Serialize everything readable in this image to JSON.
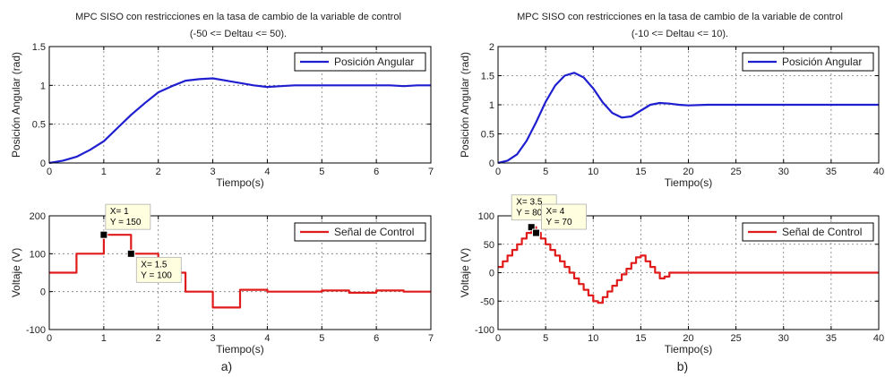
{
  "panel_labels": [
    "a)",
    "b)"
  ],
  "colors": {
    "position": "#1f1fd0",
    "control": "#e01b1b",
    "grid": "#7a7a7a",
    "datatip_bg": "#ffffe0"
  },
  "chart_data": [
    {
      "type": "line",
      "title_line1": "MPC SISO con restricciones en la tasa de cambio de la variable de control",
      "title_line2": "(-50 <= Deltau <= 50).",
      "xlabel": "Tiempo(s)",
      "ylabel": "Posición Angular (rad)",
      "xlim": [
        0,
        7
      ],
      "ylim": [
        0,
        1.5
      ],
      "xticks": [
        0,
        1,
        2,
        3,
        4,
        5,
        6,
        7
      ],
      "yticks": [
        0,
        0.5,
        1,
        1.5
      ],
      "legend": "Posición Angular",
      "legend_position": "top-right",
      "grid": true,
      "series": [
        {
          "name": "Posición Angular",
          "x": [
            0,
            0.25,
            0.5,
            0.75,
            1,
            1.25,
            1.5,
            1.75,
            2,
            2.25,
            2.5,
            2.75,
            3,
            3.25,
            3.5,
            3.75,
            4,
            4.25,
            4.5,
            4.75,
            5,
            5.25,
            5.5,
            5.75,
            6,
            6.25,
            6.5,
            6.75,
            7
          ],
          "y": [
            0,
            0.03,
            0.08,
            0.17,
            0.28,
            0.45,
            0.62,
            0.77,
            0.91,
            0.99,
            1.06,
            1.08,
            1.09,
            1.06,
            1.03,
            1.0,
            0.98,
            0.99,
            1.0,
            1.0,
            1.0,
            1.0,
            1.0,
            1.0,
            1.0,
            1.0,
            0.99,
            1.0,
            1.0
          ]
        }
      ]
    },
    {
      "type": "line",
      "xlabel": "Tiempo(s)",
      "ylabel": "Voltaje (V)",
      "xlim": [
        0,
        7
      ],
      "ylim": [
        -100,
        200
      ],
      "xticks": [
        0,
        1,
        2,
        3,
        4,
        5,
        6,
        7
      ],
      "yticks": [
        -100,
        0,
        100,
        200
      ],
      "legend": "Señal de Control",
      "legend_position": "top-right",
      "grid": true,
      "series": [
        {
          "name": "Señal de Control",
          "step": true,
          "x": [
            0,
            0.5,
            1,
            1.5,
            2,
            2.5,
            3,
            3.5,
            4,
            4.5,
            5,
            5.5,
            6,
            6.5,
            7
          ],
          "y": [
            50,
            100,
            150,
            100,
            50,
            0,
            -42,
            5,
            0,
            0,
            3,
            -3,
            3,
            0,
            0
          ]
        }
      ],
      "datatips": [
        {
          "x": 1,
          "y": 150,
          "line1": "X= 1",
          "line2": "Y = 150",
          "place": "above"
        },
        {
          "x": 1.5,
          "y": 100,
          "line1": "X= 1.5",
          "line2": "Y = 100",
          "place": "below"
        }
      ]
    },
    {
      "type": "line",
      "title_line1": "MPC SISO con restricciones en la tasa de cambio de la variable de control",
      "title_line2": "(-10 <= Deltau <= 10).",
      "xlabel": "Tiempo(s)",
      "ylabel": "Posición Angular (rad)",
      "xlim": [
        0,
        40
      ],
      "ylim": [
        0,
        2
      ],
      "xticks": [
        0,
        5,
        10,
        15,
        20,
        25,
        30,
        35,
        40
      ],
      "yticks": [
        0,
        0.5,
        1,
        1.5,
        2
      ],
      "legend": "Posición Angular",
      "legend_position": "top-right",
      "grid": true,
      "series": [
        {
          "name": "Posición Angular",
          "x": [
            0,
            1,
            2,
            3,
            4,
            5,
            6,
            7,
            8,
            9,
            10,
            11,
            12,
            13,
            14,
            15,
            16,
            17,
            18,
            19,
            20,
            22,
            25,
            30,
            35,
            40
          ],
          "y": [
            0,
            0.04,
            0.15,
            0.38,
            0.7,
            1.05,
            1.33,
            1.5,
            1.55,
            1.47,
            1.28,
            1.04,
            0.86,
            0.78,
            0.8,
            0.9,
            1.0,
            1.03,
            1.02,
            1.0,
            0.99,
            1.0,
            1.0,
            1.0,
            1.0,
            1.0
          ]
        }
      ]
    },
    {
      "type": "line",
      "xlabel": "Tiempo(s)",
      "ylabel": "Voltaje (V)",
      "xlim": [
        0,
        40
      ],
      "ylim": [
        -100,
        100
      ],
      "xticks": [
        0,
        5,
        10,
        15,
        20,
        25,
        30,
        35,
        40
      ],
      "yticks": [
        -100,
        -50,
        0,
        50,
        100
      ],
      "legend": "Señal de Control",
      "legend_position": "top-right",
      "grid": true,
      "series": [
        {
          "name": "Señal de Control",
          "step": true,
          "x": [
            0,
            0.5,
            1,
            1.5,
            2,
            2.5,
            3,
            3.5,
            4,
            4.5,
            5,
            5.5,
            6,
            6.5,
            7,
            7.5,
            8,
            8.5,
            9,
            9.5,
            10,
            10.5,
            11,
            11.5,
            12,
            12.5,
            13,
            13.5,
            14,
            14.5,
            15,
            15.5,
            16,
            16.5,
            17,
            17.5,
            18,
            40
          ],
          "y": [
            10,
            20,
            30,
            40,
            50,
            60,
            70,
            80,
            70,
            60,
            50,
            40,
            30,
            20,
            10,
            0,
            -10,
            -20,
            -30,
            -40,
            -50,
            -53,
            -43,
            -33,
            -23,
            -13,
            -3,
            7,
            17,
            27,
            30,
            20,
            10,
            0,
            -10,
            -7,
            0,
            0
          ]
        }
      ],
      "datatips": [
        {
          "x": 3.5,
          "y": 80,
          "line1": "X= 3.5",
          "line2": "Y = 80",
          "place": "above-left"
        },
        {
          "x": 4,
          "y": 70,
          "line1": "X= 4",
          "line2": "Y = 70",
          "place": "above-right"
        }
      ]
    }
  ]
}
